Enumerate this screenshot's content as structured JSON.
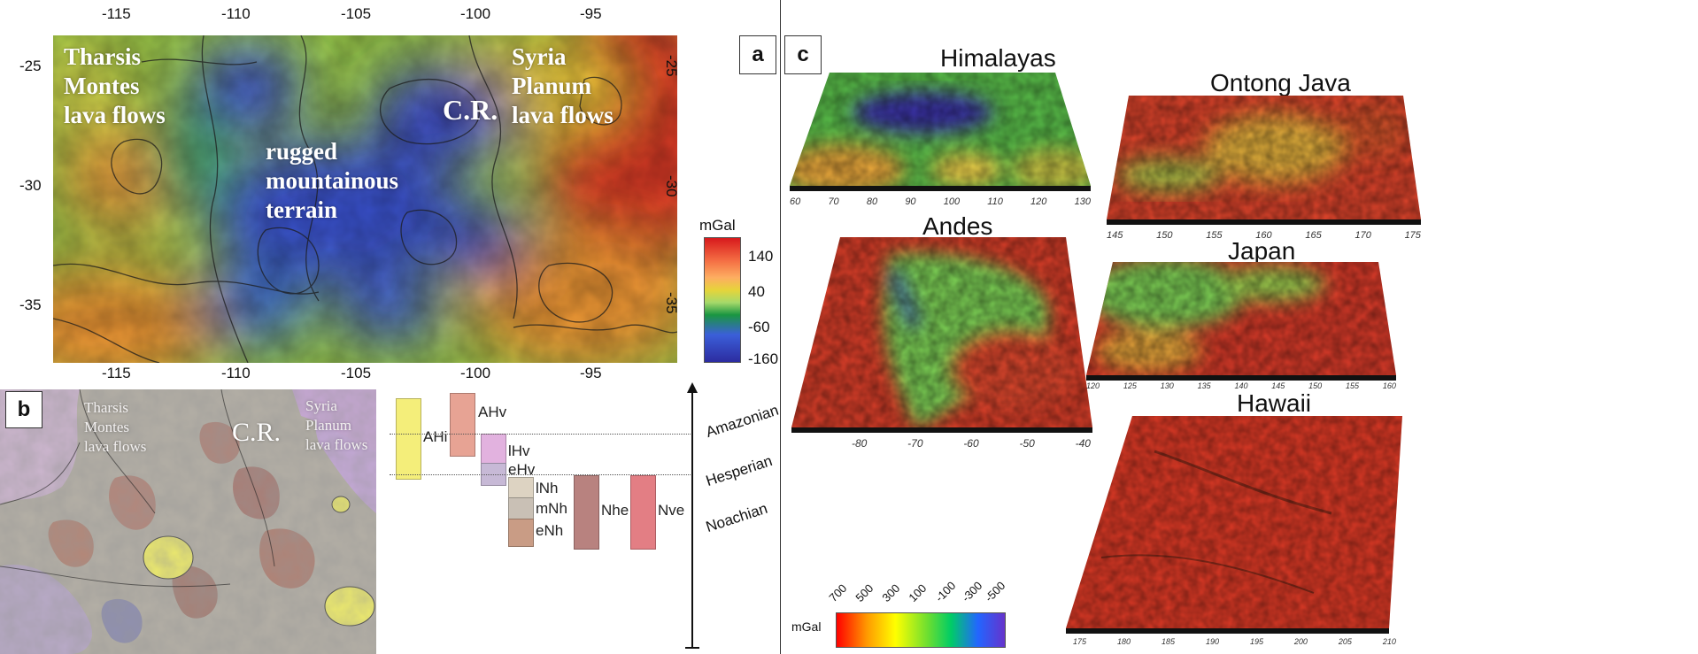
{
  "panel_a": {
    "label": "a",
    "top_ticks": [
      "-115",
      "-110",
      "-105",
      "-100",
      "-95"
    ],
    "bottom_ticks": [
      "-115",
      "-110",
      "-105",
      "-100",
      "-95"
    ],
    "left_ticks": [
      "-25",
      "-30",
      "-35"
    ],
    "right_ticks": [
      "-25",
      "-30",
      "-35"
    ],
    "annotations": {
      "tharsis": [
        "Tharsis",
        "Montes",
        "lava flows"
      ],
      "syria": [
        "Syria",
        "Planum",
        "lava flows"
      ],
      "rugged": [
        "rugged",
        "mountainous",
        "terrain"
      ],
      "cr": "C.R."
    },
    "colorbar": {
      "unit": "mGal",
      "ticks": [
        "140",
        "40",
        "-60",
        "-160"
      ],
      "colors": [
        "#d7191c",
        "#f46d43",
        "#fdae61",
        "#a6d96a",
        "#1a9641",
        "#3b5fd9",
        "#2c2ca0"
      ]
    }
  },
  "panel_b": {
    "label": "b",
    "annotations": {
      "tharsis": [
        "Tharsis",
        "Montes",
        "lava flows"
      ],
      "syria": [
        "Syria",
        "Planum",
        "lava flows"
      ],
      "cr": "C.R."
    },
    "units": {
      "AHi": {
        "label": "AHi",
        "color": "#f4ee7a"
      },
      "AHv": {
        "label": "AHv",
        "color": "#e7a394"
      },
      "lHv": {
        "label": "lHv",
        "color": "#e2b2df"
      },
      "eHv": {
        "label": "eHv",
        "color": "#c7b9d6"
      },
      "lNh": {
        "label": "lNh",
        "color": "#ddd3c2"
      },
      "mNh": {
        "label": "mNh",
        "color": "#c9c0b5"
      },
      "eNh": {
        "label": "eNh",
        "color": "#c99c85"
      },
      "Nhe": {
        "label": "Nhe",
        "color": "#b8827f"
      },
      "Nve": {
        "label": "Nve",
        "color": "#e37e84"
      }
    },
    "periods": [
      "Amazonian",
      "Hesperian",
      "Noachian"
    ]
  },
  "panel_c": {
    "label": "c",
    "regions": {
      "himalayas": {
        "title": "Himalayas",
        "ticks": [
          "60",
          "70",
          "80",
          "90",
          "100",
          "110",
          "120",
          "130"
        ]
      },
      "ontong": {
        "title": "Ontong Java",
        "ticks": [
          "145",
          "150",
          "155",
          "160",
          "165",
          "170",
          "175"
        ]
      },
      "andes": {
        "title": "Andes",
        "ticks": [
          "-80",
          "-70",
          "-60",
          "-50",
          "-40"
        ]
      },
      "japan": {
        "title": "Japan",
        "ticks": [
          "120",
          "125",
          "130",
          "135",
          "140",
          "145",
          "150",
          "155",
          "160"
        ]
      },
      "hawaii": {
        "title": "Hawaii",
        "ticks": [
          "175",
          "180",
          "185",
          "190",
          "195",
          "200",
          "205",
          "210"
        ]
      }
    },
    "colorbar": {
      "unit": "mGal",
      "ticks": [
        "700",
        "500",
        "300",
        "100",
        "-100",
        "-300",
        "-500"
      ],
      "colors": [
        "#ff0000",
        "#ff9900",
        "#ffff00",
        "#66dd33",
        "#00cc66",
        "#2266ff",
        "#6633cc"
      ]
    }
  }
}
